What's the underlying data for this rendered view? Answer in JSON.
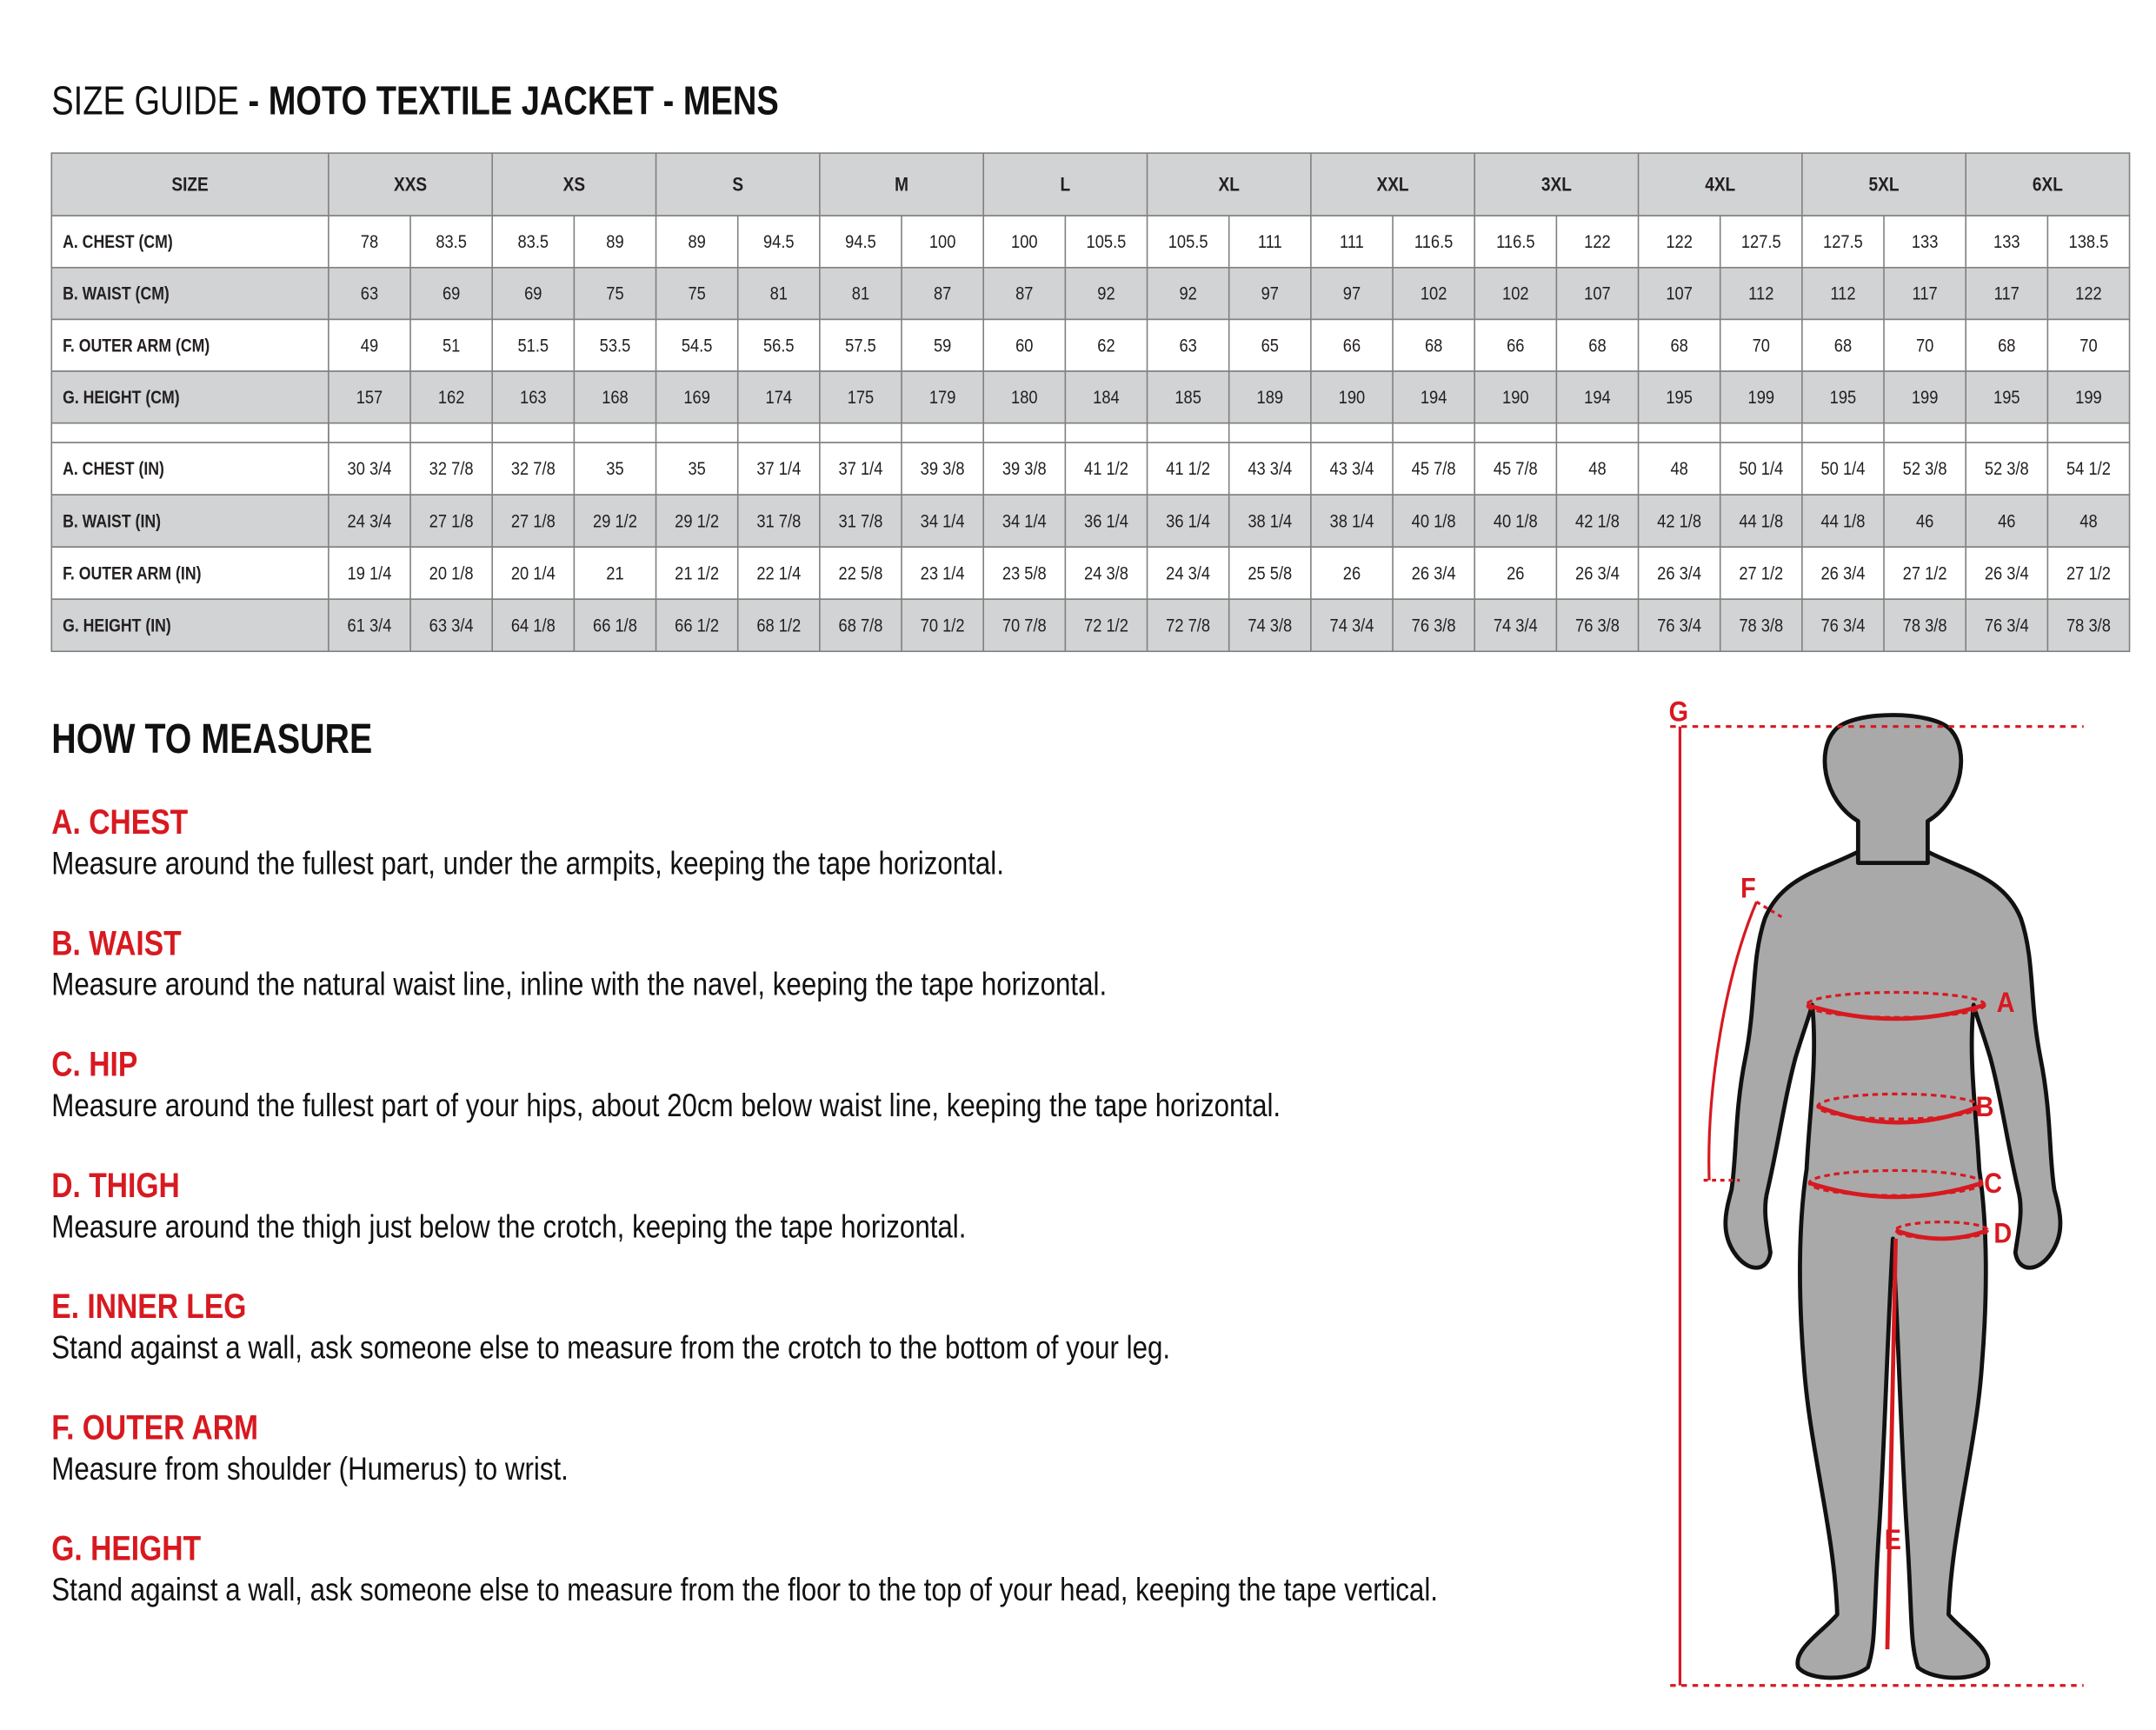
{
  "header": {
    "title_light": "SIZE GUIDE",
    "title_bold": "- MOTO TEXTILE JACKET - MENS"
  },
  "table": {
    "size_label": "SIZE",
    "sizes": [
      "XXS",
      "XS",
      "S",
      "M",
      "L",
      "XL",
      "XXL",
      "3XL",
      "4XL",
      "5XL",
      "6XL"
    ],
    "cm_rows": [
      {
        "label": "A. CHEST (CM)",
        "cells": [
          "78",
          "83.5",
          "83.5",
          "89",
          "89",
          "94.5",
          "94.5",
          "100",
          "100",
          "105.5",
          "105.5",
          "111",
          "111",
          "116.5",
          "116.5",
          "122",
          "122",
          "127.5",
          "127.5",
          "133",
          "133",
          "138.5"
        ]
      },
      {
        "label": "B. WAIST (CM)",
        "cells": [
          "63",
          "69",
          "69",
          "75",
          "75",
          "81",
          "81",
          "87",
          "87",
          "92",
          "92",
          "97",
          "97",
          "102",
          "102",
          "107",
          "107",
          "112",
          "112",
          "117",
          "117",
          "122"
        ]
      },
      {
        "label": "F. OUTER ARM (CM)",
        "cells": [
          "49",
          "51",
          "51.5",
          "53.5",
          "54.5",
          "56.5",
          "57.5",
          "59",
          "60",
          "62",
          "63",
          "65",
          "66",
          "68",
          "66",
          "68",
          "68",
          "70",
          "68",
          "70",
          "68",
          "70"
        ]
      },
      {
        "label": "G. HEIGHT (CM)",
        "cells": [
          "157",
          "162",
          "163",
          "168",
          "169",
          "174",
          "175",
          "179",
          "180",
          "184",
          "185",
          "189",
          "190",
          "194",
          "190",
          "194",
          "195",
          "199",
          "195",
          "199",
          "195",
          "199"
        ]
      }
    ],
    "in_rows": [
      {
        "label": "A. CHEST (IN)",
        "cells": [
          "30 3/4",
          "32 7/8",
          "32 7/8",
          "35",
          "35",
          "37 1/4",
          "37 1/4",
          "39 3/8",
          "39 3/8",
          "41 1/2",
          "41 1/2",
          "43 3/4",
          "43 3/4",
          "45 7/8",
          "45 7/8",
          "48",
          "48",
          "50 1/4",
          "50 1/4",
          "52 3/8",
          "52 3/8",
          "54 1/2"
        ]
      },
      {
        "label": "B. WAIST (IN)",
        "cells": [
          "24 3/4",
          "27 1/8",
          "27 1/8",
          "29 1/2",
          "29 1/2",
          "31 7/8",
          "31 7/8",
          "34 1/4",
          "34 1/4",
          "36 1/4",
          "36 1/4",
          "38 1/4",
          "38 1/4",
          "40 1/8",
          "40 1/8",
          "42 1/8",
          "42 1/8",
          "44 1/8",
          "44 1/8",
          "46",
          "46",
          "48"
        ]
      },
      {
        "label": "F. OUTER ARM (IN)",
        "cells": [
          "19 1/4",
          "20 1/8",
          "20 1/4",
          "21",
          "21 1/2",
          "22 1/4",
          "22 5/8",
          "23 1/4",
          "23 5/8",
          "24 3/8",
          "24 3/4",
          "25 5/8",
          "26",
          "26 3/4",
          "26",
          "26 3/4",
          "26 3/4",
          "27 1/2",
          "26 3/4",
          "27 1/2",
          "26 3/4",
          "27 1/2"
        ]
      },
      {
        "label": "G. HEIGHT (IN)",
        "cells": [
          "61 3/4",
          "63 3/4",
          "64 1/8",
          "66 1/8",
          "66 1/2",
          "68 1/2",
          "68 7/8",
          "70 1/2",
          "70 7/8",
          "72 1/2",
          "72 7/8",
          "74 3/8",
          "74 3/4",
          "76 3/8",
          "74 3/4",
          "76 3/8",
          "76 3/4",
          "78 3/8",
          "76 3/4",
          "78 3/8",
          "76 3/4",
          "78 3/8"
        ]
      }
    ]
  },
  "how_to_measure": {
    "heading": "HOW TO MEASURE",
    "items": [
      {
        "label": "A. CHEST",
        "text": "Measure around the fullest part, under the armpits, keeping the tape horizontal."
      },
      {
        "label": "B. WAIST",
        "text": "Measure around the natural waist line, inline with the navel, keeping the tape horizontal."
      },
      {
        "label": "C. HIP",
        "text": "Measure around the fullest part of your hips, about 20cm below waist line, keeping the tape horizontal."
      },
      {
        "label": "D. THIGH",
        "text": "Measure around the thigh just below the crotch, keeping the tape horizontal."
      },
      {
        "label": "E. INNER LEG",
        "text": "Stand against a wall, ask someone else to measure from the crotch to the bottom of your leg."
      },
      {
        "label": "F. OUTER ARM",
        "text": "Measure from shoulder (Humerus) to wrist."
      },
      {
        "label": "G. HEIGHT",
        "text": "Stand against a wall, ask someone else to measure from the floor to the top of your head, keeping the tape vertical."
      }
    ]
  },
  "figure": {
    "labels": [
      "G",
      "F",
      "A",
      "B",
      "C",
      "D",
      "E"
    ]
  }
}
